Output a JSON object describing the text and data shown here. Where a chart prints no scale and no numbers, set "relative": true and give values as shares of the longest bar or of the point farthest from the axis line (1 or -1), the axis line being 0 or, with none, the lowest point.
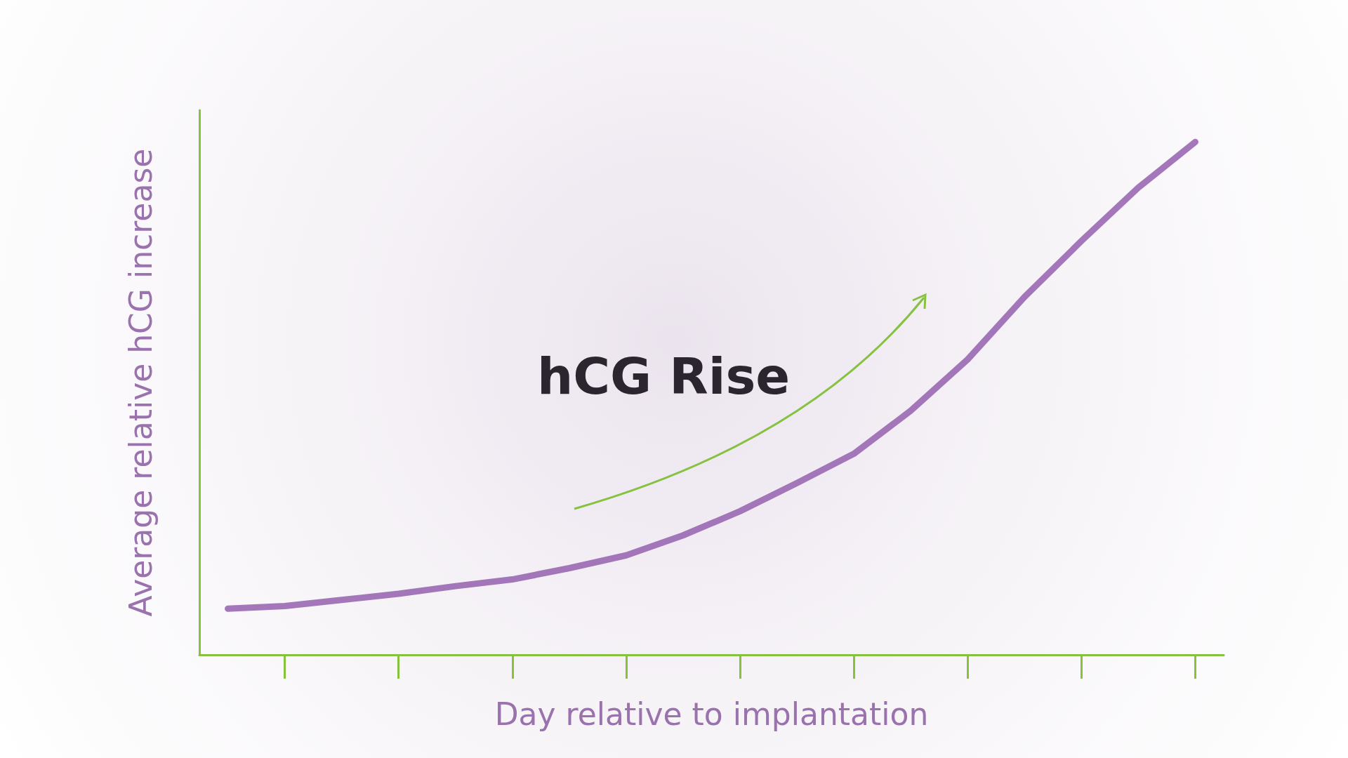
{
  "chart_data": {
    "type": "line",
    "relative": true,
    "xlabel": "Day relative to implantation",
    "ylabel": "Average relative hCG increase",
    "annotations": [
      "hCG Rise"
    ],
    "categories": [
      null,
      null,
      null,
      null,
      null,
      null,
      null,
      null,
      null,
      null,
      null,
      null,
      null,
      null,
      null,
      null,
      null,
      null
    ],
    "series": [
      {
        "color": "#9a68b3",
        "values": [
          0.09,
          0.095,
          0.107,
          0.119,
          0.134,
          0.147,
          0.169,
          0.194,
          0.233,
          0.28,
          0.335,
          0.392,
          0.476,
          0.576,
          0.698,
          0.807,
          0.911,
          1
        ]
      }
    ],
    "marker": "none",
    "line_style": "solid"
  }
}
